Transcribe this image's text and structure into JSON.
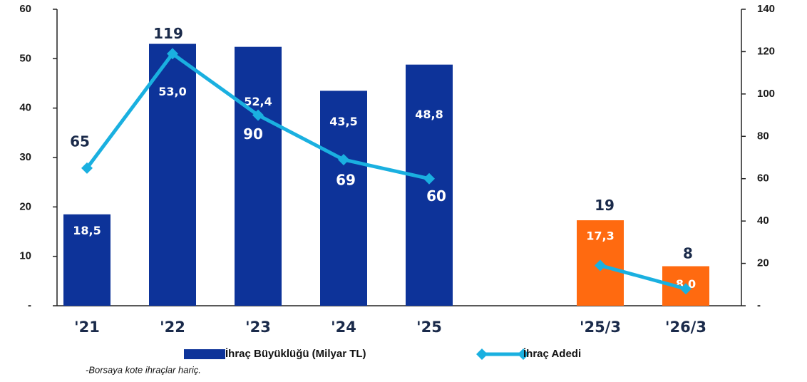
{
  "chart_data": {
    "type": "bar+line",
    "categories": [
      "'21",
      "'22",
      "'23",
      "'24",
      "'25",
      null,
      "'25/3",
      "'26/3"
    ],
    "series": [
      {
        "name": "İhraç Büyüklüğü (Milyar TL)",
        "type": "bar",
        "color": "#0d3399",
        "colors": [
          "#0d3399",
          "#0d3399",
          "#0d3399",
          "#0d3399",
          "#0d3399",
          "#0d3399",
          "#ff6a10",
          "#ff6a10"
        ],
        "values": [
          18.5,
          53.0,
          52.4,
          43.5,
          48.8,
          null,
          17.3,
          8.0
        ],
        "value_labels": [
          "18,5",
          "53,0",
          "52,4",
          "43,5",
          "48,8",
          null,
          "17,3",
          "8,0"
        ]
      },
      {
        "name": "İhraç Adedi",
        "type": "line",
        "axis": "y2",
        "color": "#1ab0e0",
        "values": [
          65,
          119,
          90,
          69,
          60,
          null,
          19,
          8
        ]
      }
    ],
    "ylim": [
      0,
      60
    ],
    "yticks": [
      {
        "value": 0,
        "label": "-"
      },
      10,
      20,
      30,
      40,
      50,
      60
    ],
    "y2lim": [
      0,
      140
    ],
    "y2ticks": [
      {
        "value": 0,
        "label": "-"
      },
      20,
      40,
      60,
      80,
      100,
      120,
      140
    ],
    "note": "-Borsaya kote ihraçlar hariç."
  }
}
